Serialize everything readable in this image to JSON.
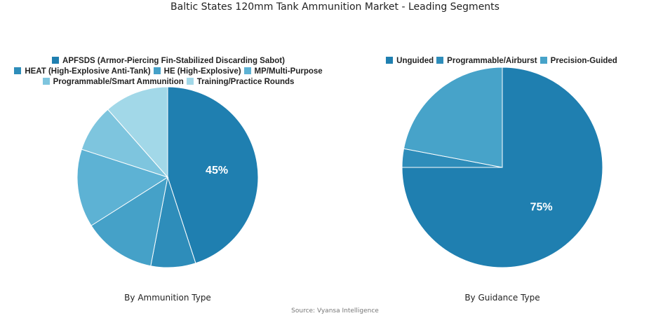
{
  "title": "Baltic States 120mm Tank Ammunition Market - Leading Segments",
  "source": "Source: Vyansa Intelligence",
  "chart_data": [
    {
      "type": "pie",
      "subtitle": "By Ammunition Type",
      "legend_position": "top",
      "categories": [
        "APFSDS (Armor-Piercing Fin-Stabilized Discarding Sabot)",
        "HEAT (High-Explosive Anti-Tank)",
        "HE (High-Explosive)",
        "MP/Multi-Purpose",
        "Programmable/Smart Ammunition",
        "Training/Practice Rounds"
      ],
      "values": [
        45,
        8,
        13,
        14,
        8.5,
        11.5
      ],
      "colors": [
        "#1f7fb0",
        "#2e8dba",
        "#45a1c8",
        "#5db2d4",
        "#7ec5de",
        "#a2d8e8"
      ],
      "labels": [
        "45%",
        "",
        "",
        "",
        "",
        ""
      ]
    },
    {
      "type": "pie",
      "subtitle": "By Guidance Type",
      "legend_position": "top",
      "categories": [
        "Unguided",
        "Programmable/Airburst",
        "Precision-Guided"
      ],
      "values": [
        75,
        3,
        22
      ],
      "colors": [
        "#1f7fb0",
        "#2e8dba",
        "#47a3c9"
      ],
      "labels": [
        "75%",
        "",
        ""
      ]
    }
  ]
}
